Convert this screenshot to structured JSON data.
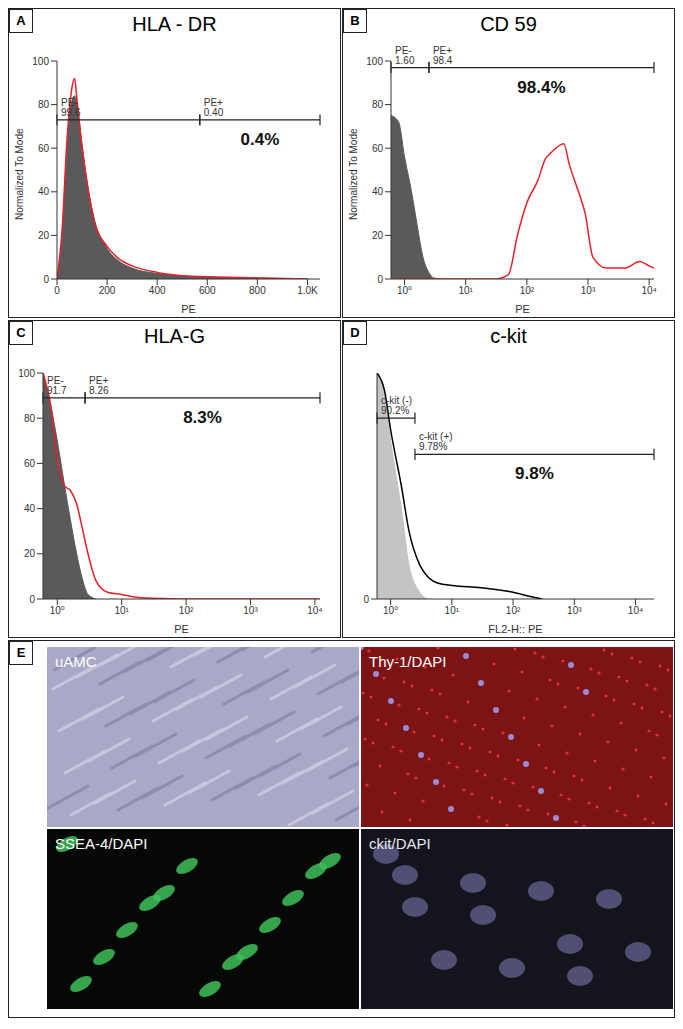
{
  "chart_data": [
    {
      "panel": "A",
      "type": "line",
      "title": "HLA - DR",
      "xlabel": "PE",
      "ylabel": "Normalized To Mode",
      "xlim": [
        0,
        1050
      ],
      "xticks": [
        0,
        200,
        400,
        600,
        800,
        {
          "value": 1000,
          "label": "1.0K"
        }
      ],
      "ylim": [
        0,
        100
      ],
      "yticks": [
        0,
        20,
        40,
        60,
        80,
        100
      ],
      "series": [
        {
          "type": "area",
          "color": "#5a5a5a",
          "x": [
            0,
            20,
            40,
            60,
            70,
            80,
            100,
            120,
            150,
            200,
            250,
            300,
            400,
            500,
            600,
            800,
            1000
          ],
          "values": [
            0,
            20,
            60,
            82,
            84,
            80,
            62,
            45,
            27,
            14,
            8,
            5,
            2.5,
            1.5,
            1,
            0.5,
            0
          ]
        },
        {
          "type": "line",
          "color": "#e8202a",
          "x": [
            0,
            20,
            40,
            60,
            70,
            80,
            100,
            120,
            150,
            200,
            250,
            300,
            400,
            500,
            600,
            800,
            1000
          ],
          "values": [
            0,
            22,
            64,
            88,
            92,
            82,
            60,
            44,
            26,
            15,
            9,
            6,
            3,
            1.5,
            1,
            0.5,
            0
          ]
        }
      ],
      "gates": [
        {
          "name": "PE-",
          "value": 99.6,
          "range": [
            0,
            570
          ],
          "level": 73
        },
        {
          "name": "PE+",
          "value": 0.4,
          "value_label": "0.40",
          "range": [
            570,
            1050
          ],
          "level": 73
        }
      ],
      "annotation": {
        "value": 0.4,
        "label": "0.4%"
      }
    },
    {
      "panel": "B",
      "type": "line",
      "title": "CD 59",
      "xlabel": "PE",
      "ylabel": "Normalized To Mode",
      "log": "x",
      "xlim": [
        0.6,
        12000
      ],
      "xticks": [
        {
          "value": 1,
          "label": "10⁰"
        },
        {
          "value": 10,
          "label": "10¹"
        },
        {
          "value": 100,
          "label": "10²"
        },
        {
          "value": 1000,
          "label": "10³"
        },
        {
          "value": 10000,
          "label": "10⁴"
        }
      ],
      "ylim": [
        0,
        100
      ],
      "yticks": [
        0,
        20,
        40,
        60,
        80,
        100
      ],
      "series": [
        {
          "type": "area",
          "color": "#5a5a5a",
          "x": [
            0.6,
            0.8,
            1,
            1.3,
            1.6,
            2,
            2.5,
            3,
            4
          ],
          "values": [
            75,
            72,
            56,
            40,
            25,
            10,
            3,
            0.5,
            0
          ]
        },
        {
          "type": "line",
          "color": "#e8202a",
          "x": [
            0.6,
            30,
            50,
            70,
            100,
            150,
            200,
            250,
            300,
            400,
            500,
            700,
            900,
            1200,
            2000,
            4000,
            7000,
            10000,
            12000
          ],
          "values": [
            0,
            0,
            2,
            20,
            35,
            45,
            55,
            58,
            60,
            62,
            52,
            40,
            30,
            10,
            5,
            5,
            8,
            6,
            5
          ]
        }
      ],
      "gates": [
        {
          "name": "PE-",
          "value": 1.6,
          "value_label": "1.60",
          "range": [
            0.6,
            2.5
          ],
          "level": 97
        },
        {
          "name": "PE+",
          "value": 98.4,
          "range": [
            2.5,
            12000
          ],
          "level": 97
        }
      ],
      "annotation": {
        "value": 98.4,
        "label": "98.4%"
      }
    },
    {
      "panel": "C",
      "type": "line",
      "title": "HLA-G",
      "xlabel": "PE",
      "log": "x",
      "xlim": [
        0.6,
        12000
      ],
      "xticks": [
        {
          "value": 1,
          "label": "10⁰"
        },
        {
          "value": 10,
          "label": "10¹"
        },
        {
          "value": 100,
          "label": "10²"
        },
        {
          "value": 1000,
          "label": "10³"
        },
        {
          "value": 10000,
          "label": "10⁴"
        }
      ],
      "ylim": [
        0,
        100
      ],
      "yticks": [
        0,
        20,
        40,
        60,
        80,
        100
      ],
      "series": [
        {
          "type": "area",
          "color": "#5a5a5a",
          "x": [
            0.6,
            0.8,
            1,
            1.3,
            1.6,
            2,
            2.5,
            3,
            4
          ],
          "values": [
            100,
            85,
            70,
            50,
            35,
            20,
            8,
            2,
            0
          ]
        },
        {
          "type": "line",
          "color": "#e8202a",
          "x": [
            0.6,
            0.8,
            1,
            1.3,
            1.6,
            2,
            2.5,
            3,
            4,
            6,
            10,
            15,
            30,
            100,
            12000
          ],
          "values": [
            100,
            85,
            62,
            50,
            48,
            42,
            30,
            20,
            8,
            3,
            2,
            1,
            0.3,
            0,
            0
          ]
        }
      ],
      "gates": [
        {
          "name": "PE-",
          "value": 91.7,
          "range": [
            0.6,
            2.7
          ],
          "level": 89
        },
        {
          "name": "PE+",
          "value": 8.26,
          "range": [
            2.7,
            12000
          ],
          "level": 89
        }
      ],
      "annotation": {
        "value": 8.3,
        "label": "8.3%"
      }
    },
    {
      "panel": "D",
      "type": "line",
      "title": "c-kit",
      "xlabel": "FL2-H:: PE",
      "log": "x",
      "xlim": [
        0.6,
        20000
      ],
      "xticks": [
        {
          "value": 1,
          "label": "10⁰"
        },
        {
          "value": 10,
          "label": "10¹"
        },
        {
          "value": 100,
          "label": "10²"
        },
        {
          "value": 1000,
          "label": "10³"
        },
        {
          "value": 10000,
          "label": "10⁴"
        }
      ],
      "ylim": [
        0,
        100
      ],
      "yticks": [
        0
      ],
      "series": [
        {
          "type": "area",
          "color": "#c4c4c4",
          "x": [
            0.6,
            0.8,
            1,
            1.5,
            2,
            3,
            4
          ],
          "values": [
            100,
            90,
            70,
            40,
            15,
            3,
            0
          ]
        },
        {
          "type": "line",
          "color": "#000000",
          "x": [
            0.6,
            0.8,
            1,
            1.5,
            2,
            3,
            4,
            6,
            10,
            30,
            100,
            200,
            300
          ],
          "values": [
            100,
            92,
            75,
            50,
            30,
            15,
            10,
            7,
            6,
            5,
            3,
            1,
            0
          ]
        }
      ],
      "gates": [
        {
          "name": "c-kit (-)",
          "value": 90.2,
          "value_label": "90.2%",
          "range": [
            0.6,
            2.5
          ],
          "level": 80
        },
        {
          "name": "c-kit (+)",
          "value": 9.78,
          "value_label": "9.78%",
          "range": [
            2.5,
            20000
          ],
          "level": 64
        }
      ],
      "annotation": {
        "value": 9.8,
        "label": "9.8%"
      }
    }
  ],
  "image_panel": {
    "panel": "E",
    "images": [
      {
        "label": "uAMC"
      },
      {
        "label": "Thy-1/DAPI"
      },
      {
        "label": "SSEA-4/DAPI"
      },
      {
        "label": "ckit/DAPI"
      }
    ]
  }
}
